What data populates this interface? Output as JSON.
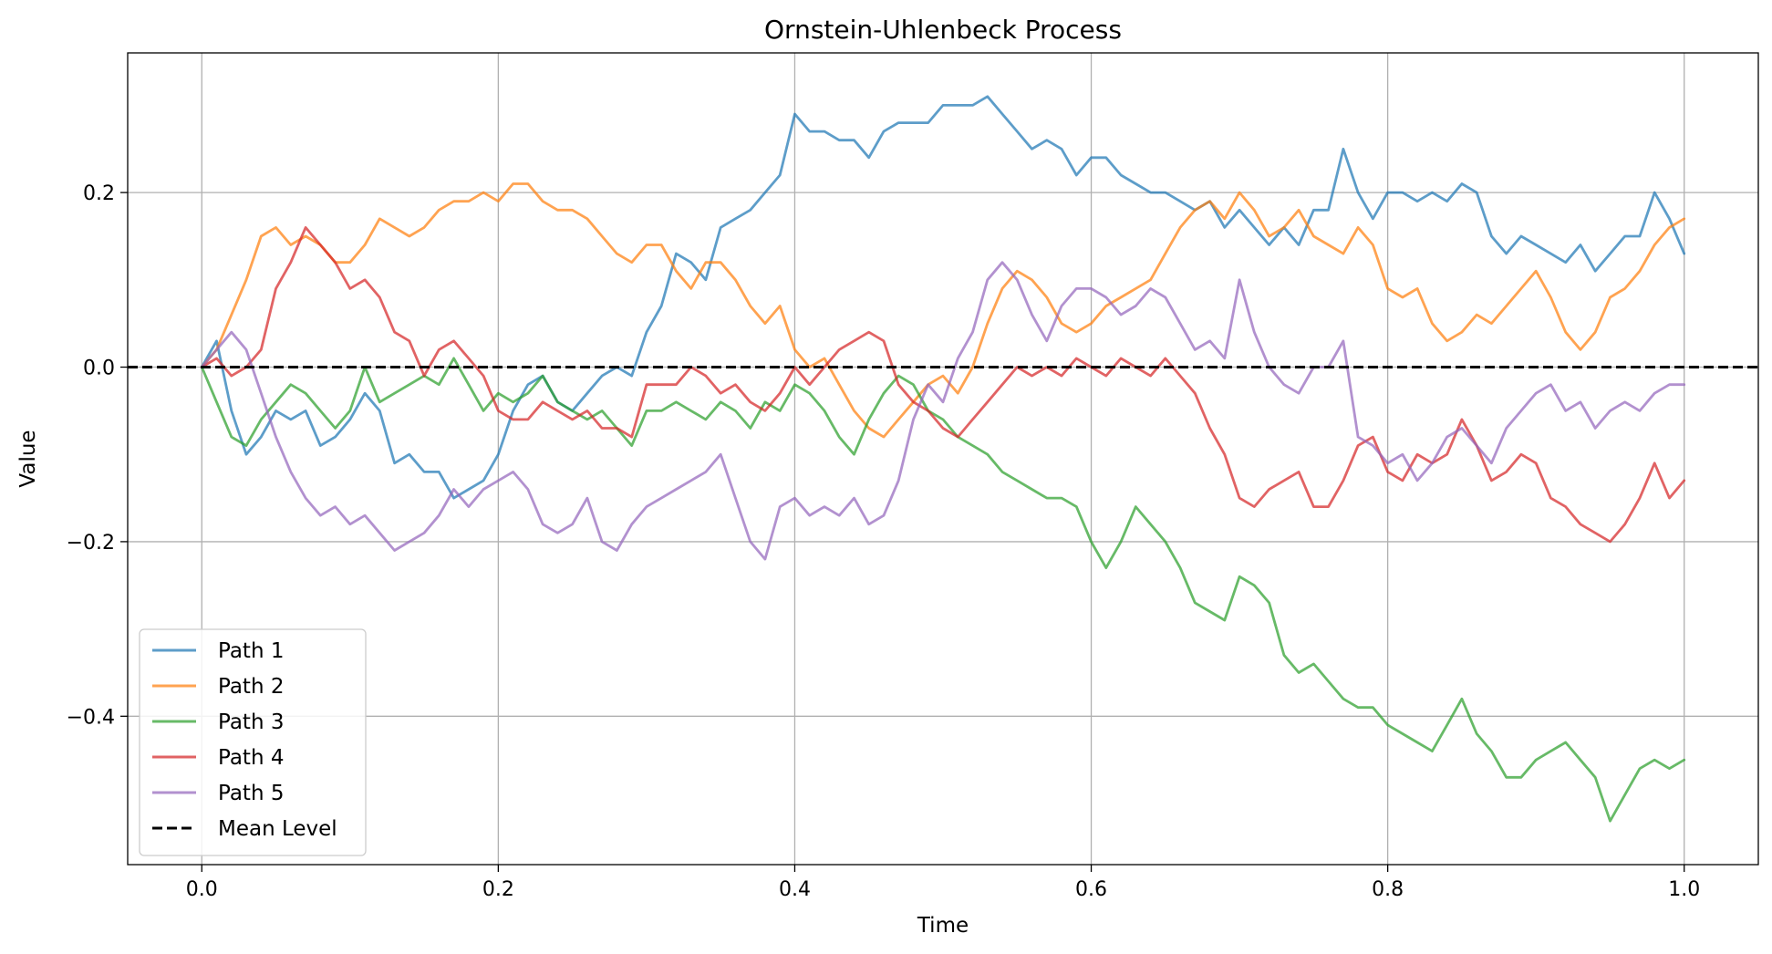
{
  "chart_data": {
    "type": "line",
    "title": "Ornstein-Uhlenbeck Process",
    "xlabel": "Time",
    "ylabel": "Value",
    "xlim": [
      -0.05,
      1.05
    ],
    "ylim": [
      -0.57,
      0.36
    ],
    "xticks": [
      0.0,
      0.2,
      0.4,
      0.6,
      0.8,
      1.0
    ],
    "xtick_labels": [
      "0.0",
      "0.2",
      "0.4",
      "0.6",
      "0.8",
      "1.0"
    ],
    "yticks": [
      -0.4,
      -0.2,
      0.0,
      0.2
    ],
    "ytick_labels": [
      "−0.4",
      "−0.2",
      "0.0",
      "0.2"
    ],
    "grid": true,
    "legend_position": "lower-left",
    "mean_level": {
      "name": "Mean Level",
      "value": 0.0,
      "color": "#000000",
      "style": "dashed"
    },
    "series": [
      {
        "name": "Path 1",
        "color": "#1f77b4",
        "x": [
          0,
          0.01,
          0.02,
          0.03,
          0.04,
          0.05,
          0.06,
          0.07,
          0.08,
          0.09,
          0.1,
          0.11,
          0.12,
          0.13,
          0.14,
          0.15,
          0.16,
          0.17,
          0.18,
          0.19,
          0.2,
          0.21,
          0.22,
          0.23,
          0.24,
          0.25,
          0.26,
          0.27,
          0.28,
          0.29,
          0.3,
          0.31,
          0.32,
          0.33,
          0.34,
          0.35,
          0.36,
          0.37,
          0.38,
          0.39,
          0.4,
          0.41,
          0.42,
          0.43,
          0.44,
          0.45,
          0.46,
          0.47,
          0.48,
          0.49,
          0.5,
          0.51,
          0.52,
          0.53,
          0.54,
          0.55,
          0.56,
          0.57,
          0.58,
          0.59,
          0.6,
          0.61,
          0.62,
          0.63,
          0.64,
          0.65,
          0.66,
          0.67,
          0.68,
          0.69,
          0.7,
          0.71,
          0.72,
          0.73,
          0.74,
          0.75,
          0.76,
          0.77,
          0.78,
          0.79,
          0.8,
          0.81,
          0.82,
          0.83,
          0.84,
          0.85,
          0.86,
          0.87,
          0.88,
          0.89,
          0.9,
          0.91,
          0.92,
          0.93,
          0.94,
          0.95,
          0.96,
          0.97,
          0.98,
          0.99,
          1.0
        ],
        "y": [
          0,
          0.03,
          -0.05,
          -0.1,
          -0.08,
          -0.05,
          -0.06,
          -0.05,
          -0.09,
          -0.08,
          -0.06,
          -0.03,
          -0.05,
          -0.11,
          -0.1,
          -0.12,
          -0.12,
          -0.15,
          -0.14,
          -0.13,
          -0.1,
          -0.05,
          -0.02,
          -0.01,
          -0.04,
          -0.05,
          -0.03,
          -0.01,
          0,
          -0.01,
          0.04,
          0.07,
          0.13,
          0.12,
          0.1,
          0.16,
          0.17,
          0.18,
          0.2,
          0.22,
          0.29,
          0.27,
          0.27,
          0.26,
          0.26,
          0.24,
          0.27,
          0.28,
          0.28,
          0.28,
          0.3,
          0.3,
          0.3,
          0.31,
          0.29,
          0.27,
          0.25,
          0.26,
          0.25,
          0.22,
          0.24,
          0.24,
          0.22,
          0.21,
          0.2,
          0.2,
          0.19,
          0.18,
          0.19,
          0.16,
          0.18,
          0.16,
          0.14,
          0.16,
          0.14,
          0.18,
          0.18,
          0.25,
          0.2,
          0.17,
          0.2,
          0.2,
          0.19,
          0.2,
          0.19,
          0.21,
          0.2,
          0.15,
          0.13,
          0.15,
          0.14,
          0.13,
          0.12,
          0.14,
          0.11,
          0.13,
          0.15,
          0.15,
          0.2,
          0.17,
          0.13
        ]
      },
      {
        "name": "Path 2",
        "color": "#ff7f0e",
        "x": [
          0,
          0.01,
          0.02,
          0.03,
          0.04,
          0.05,
          0.06,
          0.07,
          0.08,
          0.09,
          0.1,
          0.11,
          0.12,
          0.13,
          0.14,
          0.15,
          0.16,
          0.17,
          0.18,
          0.19,
          0.2,
          0.21,
          0.22,
          0.23,
          0.24,
          0.25,
          0.26,
          0.27,
          0.28,
          0.29,
          0.3,
          0.31,
          0.32,
          0.33,
          0.34,
          0.35,
          0.36,
          0.37,
          0.38,
          0.39,
          0.4,
          0.41,
          0.42,
          0.43,
          0.44,
          0.45,
          0.46,
          0.47,
          0.48,
          0.49,
          0.5,
          0.51,
          0.52,
          0.53,
          0.54,
          0.55,
          0.56,
          0.57,
          0.58,
          0.59,
          0.6,
          0.61,
          0.62,
          0.63,
          0.64,
          0.65,
          0.66,
          0.67,
          0.68,
          0.69,
          0.7,
          0.71,
          0.72,
          0.73,
          0.74,
          0.75,
          0.76,
          0.77,
          0.78,
          0.79,
          0.8,
          0.81,
          0.82,
          0.83,
          0.84,
          0.85,
          0.86,
          0.87,
          0.88,
          0.89,
          0.9,
          0.91,
          0.92,
          0.93,
          0.94,
          0.95,
          0.96,
          0.97,
          0.98,
          0.99,
          1.0
        ],
        "y": [
          0,
          0.02,
          0.06,
          0.1,
          0.15,
          0.16,
          0.14,
          0.15,
          0.14,
          0.12,
          0.12,
          0.14,
          0.17,
          0.16,
          0.15,
          0.16,
          0.18,
          0.19,
          0.19,
          0.2,
          0.19,
          0.21,
          0.21,
          0.19,
          0.18,
          0.18,
          0.17,
          0.15,
          0.13,
          0.12,
          0.14,
          0.14,
          0.11,
          0.09,
          0.12,
          0.12,
          0.1,
          0.07,
          0.05,
          0.07,
          0.02,
          0.0,
          0.01,
          -0.02,
          -0.05,
          -0.07,
          -0.08,
          -0.06,
          -0.04,
          -0.02,
          -0.01,
          -0.03,
          0.0,
          0.05,
          0.09,
          0.11,
          0.1,
          0.08,
          0.05,
          0.04,
          0.05,
          0.07,
          0.08,
          0.09,
          0.1,
          0.13,
          0.16,
          0.18,
          0.19,
          0.17,
          0.2,
          0.18,
          0.15,
          0.16,
          0.18,
          0.15,
          0.14,
          0.13,
          0.16,
          0.14,
          0.09,
          0.08,
          0.09,
          0.05,
          0.03,
          0.04,
          0.06,
          0.05,
          0.07,
          0.09,
          0.11,
          0.08,
          0.04,
          0.02,
          0.04,
          0.08,
          0.09,
          0.11,
          0.14,
          0.16,
          0.17
        ]
      },
      {
        "name": "Path 3",
        "color": "#2ca02c",
        "x": [
          0,
          0.01,
          0.02,
          0.03,
          0.04,
          0.05,
          0.06,
          0.07,
          0.08,
          0.09,
          0.1,
          0.11,
          0.12,
          0.13,
          0.14,
          0.15,
          0.16,
          0.17,
          0.18,
          0.19,
          0.2,
          0.21,
          0.22,
          0.23,
          0.24,
          0.25,
          0.26,
          0.27,
          0.28,
          0.29,
          0.3,
          0.31,
          0.32,
          0.33,
          0.34,
          0.35,
          0.36,
          0.37,
          0.38,
          0.39,
          0.4,
          0.41,
          0.42,
          0.43,
          0.44,
          0.45,
          0.46,
          0.47,
          0.48,
          0.49,
          0.5,
          0.51,
          0.52,
          0.53,
          0.54,
          0.55,
          0.56,
          0.57,
          0.58,
          0.59,
          0.6,
          0.61,
          0.62,
          0.63,
          0.64,
          0.65,
          0.66,
          0.67,
          0.68,
          0.69,
          0.7,
          0.71,
          0.72,
          0.73,
          0.74,
          0.75,
          0.76,
          0.77,
          0.78,
          0.79,
          0.8,
          0.81,
          0.82,
          0.83,
          0.84,
          0.85,
          0.86,
          0.87,
          0.88,
          0.89,
          0.9,
          0.91,
          0.92,
          0.93,
          0.94,
          0.95,
          0.96,
          0.97,
          0.98,
          0.99,
          1.0
        ],
        "y": [
          0,
          -0.04,
          -0.08,
          -0.09,
          -0.06,
          -0.04,
          -0.02,
          -0.03,
          -0.05,
          -0.07,
          -0.05,
          0.0,
          -0.04,
          -0.03,
          -0.02,
          -0.01,
          -0.02,
          0.01,
          -0.02,
          -0.05,
          -0.03,
          -0.04,
          -0.03,
          -0.01,
          -0.04,
          -0.05,
          -0.06,
          -0.05,
          -0.07,
          -0.09,
          -0.05,
          -0.05,
          -0.04,
          -0.05,
          -0.06,
          -0.04,
          -0.05,
          -0.07,
          -0.04,
          -0.05,
          -0.02,
          -0.03,
          -0.05,
          -0.08,
          -0.1,
          -0.06,
          -0.03,
          -0.01,
          -0.02,
          -0.05,
          -0.06,
          -0.08,
          -0.09,
          -0.1,
          -0.12,
          -0.13,
          -0.14,
          -0.15,
          -0.15,
          -0.16,
          -0.2,
          -0.23,
          -0.2,
          -0.16,
          -0.18,
          -0.2,
          -0.23,
          -0.27,
          -0.28,
          -0.29,
          -0.24,
          -0.25,
          -0.27,
          -0.33,
          -0.35,
          -0.34,
          -0.36,
          -0.38,
          -0.39,
          -0.39,
          -0.41,
          -0.42,
          -0.43,
          -0.44,
          -0.41,
          -0.38,
          -0.42,
          -0.44,
          -0.47,
          -0.47,
          -0.45,
          -0.44,
          -0.43,
          -0.45,
          -0.47,
          -0.52,
          -0.49,
          -0.46,
          -0.45,
          -0.46,
          -0.45
        ]
      },
      {
        "name": "Path 4",
        "color": "#d62728",
        "x": [
          0,
          0.01,
          0.02,
          0.03,
          0.04,
          0.05,
          0.06,
          0.07,
          0.08,
          0.09,
          0.1,
          0.11,
          0.12,
          0.13,
          0.14,
          0.15,
          0.16,
          0.17,
          0.18,
          0.19,
          0.2,
          0.21,
          0.22,
          0.23,
          0.24,
          0.25,
          0.26,
          0.27,
          0.28,
          0.29,
          0.3,
          0.31,
          0.32,
          0.33,
          0.34,
          0.35,
          0.36,
          0.37,
          0.38,
          0.39,
          0.4,
          0.41,
          0.42,
          0.43,
          0.44,
          0.45,
          0.46,
          0.47,
          0.48,
          0.49,
          0.5,
          0.51,
          0.52,
          0.53,
          0.54,
          0.55,
          0.56,
          0.57,
          0.58,
          0.59,
          0.6,
          0.61,
          0.62,
          0.63,
          0.64,
          0.65,
          0.66,
          0.67,
          0.68,
          0.69,
          0.7,
          0.71,
          0.72,
          0.73,
          0.74,
          0.75,
          0.76,
          0.77,
          0.78,
          0.79,
          0.8,
          0.81,
          0.82,
          0.83,
          0.84,
          0.85,
          0.86,
          0.87,
          0.88,
          0.89,
          0.9,
          0.91,
          0.92,
          0.93,
          0.94,
          0.95,
          0.96,
          0.97,
          0.98,
          0.99,
          1.0
        ],
        "y": [
          0,
          0.01,
          -0.01,
          0.0,
          0.02,
          0.09,
          0.12,
          0.16,
          0.14,
          0.12,
          0.09,
          0.1,
          0.08,
          0.04,
          0.03,
          -0.01,
          0.02,
          0.03,
          0.01,
          -0.01,
          -0.05,
          -0.06,
          -0.06,
          -0.04,
          -0.05,
          -0.06,
          -0.05,
          -0.07,
          -0.07,
          -0.08,
          -0.02,
          -0.02,
          -0.02,
          0.0,
          -0.01,
          -0.03,
          -0.02,
          -0.04,
          -0.05,
          -0.03,
          0.0,
          -0.02,
          0.0,
          0.02,
          0.03,
          0.04,
          0.03,
          -0.02,
          -0.04,
          -0.05,
          -0.07,
          -0.08,
          -0.06,
          -0.04,
          -0.02,
          0.0,
          -0.01,
          0.0,
          -0.01,
          0.01,
          0.0,
          -0.01,
          0.01,
          0.0,
          -0.01,
          0.01,
          -0.01,
          -0.03,
          -0.07,
          -0.1,
          -0.15,
          -0.16,
          -0.14,
          -0.13,
          -0.12,
          -0.16,
          -0.16,
          -0.13,
          -0.09,
          -0.08,
          -0.12,
          -0.13,
          -0.1,
          -0.11,
          -0.1,
          -0.06,
          -0.09,
          -0.13,
          -0.12,
          -0.1,
          -0.11,
          -0.15,
          -0.16,
          -0.18,
          -0.19,
          -0.2,
          -0.18,
          -0.15,
          -0.11,
          -0.15,
          -0.13
        ]
      },
      {
        "name": "Path 5",
        "color": "#9467bd",
        "x": [
          0,
          0.01,
          0.02,
          0.03,
          0.04,
          0.05,
          0.06,
          0.07,
          0.08,
          0.09,
          0.1,
          0.11,
          0.12,
          0.13,
          0.14,
          0.15,
          0.16,
          0.17,
          0.18,
          0.19,
          0.2,
          0.21,
          0.22,
          0.23,
          0.24,
          0.25,
          0.26,
          0.27,
          0.28,
          0.29,
          0.3,
          0.31,
          0.32,
          0.33,
          0.34,
          0.35,
          0.36,
          0.37,
          0.38,
          0.39,
          0.4,
          0.41,
          0.42,
          0.43,
          0.44,
          0.45,
          0.46,
          0.47,
          0.48,
          0.49,
          0.5,
          0.51,
          0.52,
          0.53,
          0.54,
          0.55,
          0.56,
          0.57,
          0.58,
          0.59,
          0.6,
          0.61,
          0.62,
          0.63,
          0.64,
          0.65,
          0.66,
          0.67,
          0.68,
          0.69,
          0.7,
          0.71,
          0.72,
          0.73,
          0.74,
          0.75,
          0.76,
          0.77,
          0.78,
          0.79,
          0.8,
          0.81,
          0.82,
          0.83,
          0.84,
          0.85,
          0.86,
          0.87,
          0.88,
          0.89,
          0.9,
          0.91,
          0.92,
          0.93,
          0.94,
          0.95,
          0.96,
          0.97,
          0.98,
          0.99,
          1.0
        ],
        "y": [
          0,
          0.02,
          0.04,
          0.02,
          -0.03,
          -0.08,
          -0.12,
          -0.15,
          -0.17,
          -0.16,
          -0.18,
          -0.17,
          -0.19,
          -0.21,
          -0.2,
          -0.19,
          -0.17,
          -0.14,
          -0.16,
          -0.14,
          -0.13,
          -0.12,
          -0.14,
          -0.18,
          -0.19,
          -0.18,
          -0.15,
          -0.2,
          -0.21,
          -0.18,
          -0.16,
          -0.15,
          -0.14,
          -0.13,
          -0.12,
          -0.1,
          -0.15,
          -0.2,
          -0.22,
          -0.16,
          -0.15,
          -0.17,
          -0.16,
          -0.17,
          -0.15,
          -0.18,
          -0.17,
          -0.13,
          -0.06,
          -0.02,
          -0.04,
          0.01,
          0.04,
          0.1,
          0.12,
          0.1,
          0.06,
          0.03,
          0.07,
          0.09,
          0.09,
          0.08,
          0.06,
          0.07,
          0.09,
          0.08,
          0.05,
          0.02,
          0.03,
          0.01,
          0.1,
          0.04,
          0.0,
          -0.02,
          -0.03,
          0.0,
          0.0,
          0.03,
          -0.08,
          -0.09,
          -0.11,
          -0.1,
          -0.13,
          -0.11,
          -0.08,
          -0.07,
          -0.09,
          -0.11,
          -0.07,
          -0.05,
          -0.03,
          -0.02,
          -0.05,
          -0.04,
          -0.07,
          -0.05,
          -0.04,
          -0.05,
          -0.03,
          -0.02,
          -0.02
        ]
      }
    ]
  }
}
